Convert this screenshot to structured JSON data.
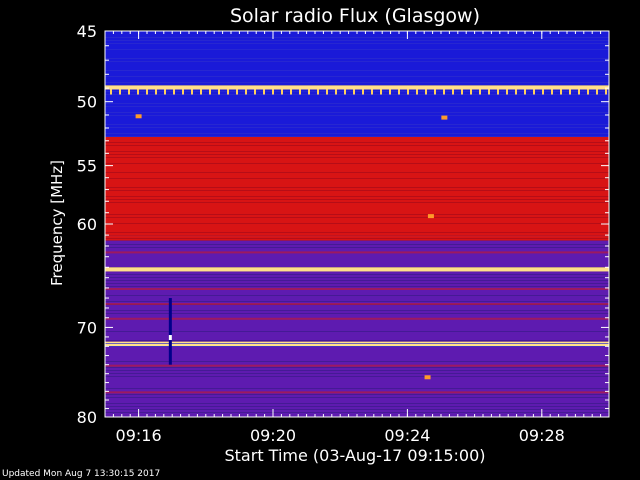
{
  "footer": {
    "updated": "Updated Mon Aug  7 13:30:15 2017"
  },
  "chart_data": {
    "type": "heatmap",
    "title": "Solar radio Flux (Glasgow)",
    "xlabel": "Start Time (03-Aug-17 09:15:00)",
    "ylabel": "Frequency [MHz]",
    "x_ticks": [
      "09:16",
      "09:20",
      "09:24",
      "09:28"
    ],
    "x_tick_minutes": [
      16,
      20,
      24,
      28
    ],
    "x_range_minutes": [
      15.0,
      30.0
    ],
    "y_ticks": [
      45,
      50,
      55,
      60,
      70,
      80
    ],
    "y_range_mhz": [
      45,
      80
    ],
    "y_scale": "log",
    "colors": {
      "low": "#1a1ad8",
      "mid": "#5e1bb0",
      "high": "#d81414",
      "peak": "#ffe08a",
      "background": "#000000",
      "axis": "#ffffff"
    },
    "bands": [
      {
        "mhz": [
          45.0,
          48.8
        ],
        "intensity": "low"
      },
      {
        "mhz": [
          48.8,
          49.1
        ],
        "intensity": "peak"
      },
      {
        "mhz": [
          49.1,
          52.7
        ],
        "intensity": "low"
      },
      {
        "mhz": [
          52.7,
          61.5
        ],
        "intensity": "high"
      },
      {
        "mhz": [
          61.5,
          64.0
        ],
        "intensity": "mid"
      },
      {
        "mhz": [
          64.0,
          64.4
        ],
        "intensity": "peak"
      },
      {
        "mhz": [
          64.4,
          71.5
        ],
        "intensity": "mid"
      },
      {
        "mhz": [
          71.5,
          72.0
        ],
        "intensity": "peak"
      },
      {
        "mhz": [
          72.0,
          80.0
        ],
        "intensity": "mid"
      }
    ],
    "bright_spots": [
      {
        "time_min": 24.7,
        "mhz": 59.3
      },
      {
        "time_min": 25.1,
        "mhz": 51.2
      },
      {
        "time_min": 16.0,
        "mhz": 51.1
      },
      {
        "time_min": 24.6,
        "mhz": 75.4
      }
    ],
    "data_gap": {
      "time_min": 16.9,
      "mhz": [
        67.0,
        74.0
      ]
    }
  }
}
